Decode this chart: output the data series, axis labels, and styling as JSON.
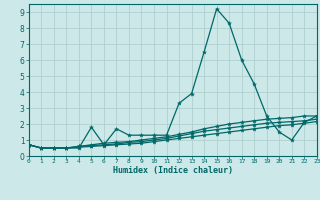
{
  "xlabel": "Humidex (Indice chaleur)",
  "bg_color": "#cce8e8",
  "line_color": "#006868",
  "grid_color": "#aacaca",
  "xlim": [
    0,
    23
  ],
  "ylim": [
    0,
    9.5
  ],
  "xticks": [
    0,
    1,
    2,
    3,
    4,
    5,
    6,
    7,
    8,
    9,
    10,
    11,
    12,
    13,
    14,
    15,
    16,
    17,
    18,
    19,
    20,
    21,
    22,
    23
  ],
  "yticks": [
    0,
    1,
    2,
    3,
    4,
    5,
    6,
    7,
    8,
    9
  ],
  "series": [
    [
      0.7,
      0.5,
      0.5,
      0.5,
      0.5,
      1.8,
      0.7,
      1.7,
      1.3,
      1.3,
      1.3,
      1.3,
      3.3,
      3.9,
      6.5,
      9.2,
      8.3,
      6.0,
      4.5,
      2.5,
      1.5,
      1.0,
      2.1,
      2.5
    ],
    [
      0.7,
      0.5,
      0.5,
      0.5,
      0.6,
      0.7,
      0.8,
      0.85,
      0.9,
      1.0,
      1.1,
      1.2,
      1.35,
      1.5,
      1.7,
      1.85,
      2.0,
      2.1,
      2.2,
      2.3,
      2.35,
      2.4,
      2.5,
      2.5
    ],
    [
      0.7,
      0.5,
      0.5,
      0.5,
      0.6,
      0.65,
      0.7,
      0.75,
      0.85,
      0.9,
      1.0,
      1.1,
      1.25,
      1.4,
      1.55,
      1.65,
      1.75,
      1.85,
      1.95,
      2.05,
      2.1,
      2.15,
      2.2,
      2.3
    ],
    [
      0.7,
      0.5,
      0.5,
      0.5,
      0.55,
      0.6,
      0.65,
      0.7,
      0.75,
      0.8,
      0.9,
      1.0,
      1.1,
      1.2,
      1.3,
      1.4,
      1.5,
      1.6,
      1.7,
      1.8,
      1.9,
      1.95,
      2.05,
      2.15
    ]
  ]
}
